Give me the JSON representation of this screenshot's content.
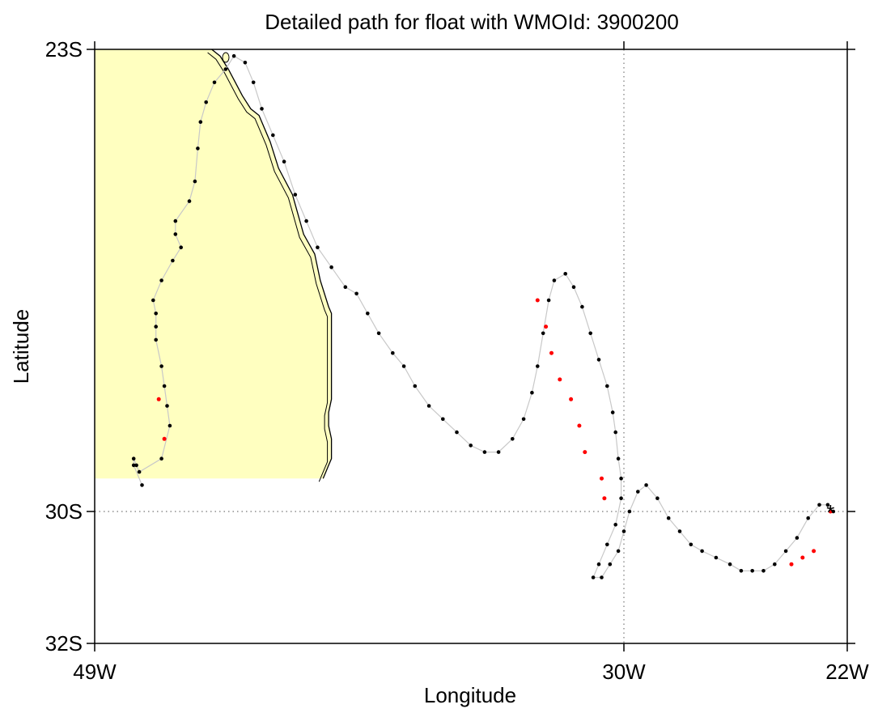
{
  "chart_data": {
    "type": "scatter",
    "title": "Detailed path for float with WMOId: 3900200",
    "xlabel": "Longitude",
    "ylabel": "Latitude",
    "x_ticks": [
      {
        "value": -49,
        "label": "49W"
      },
      {
        "value": -30,
        "label": "30W"
      },
      {
        "value": -22,
        "label": "22W"
      }
    ],
    "y_ticks": [
      {
        "value": -23,
        "label": "23S"
      },
      {
        "value": -30,
        "label": "30S"
      },
      {
        "value": -32,
        "label": "32S"
      }
    ],
    "xlim": [
      -49,
      -22
    ],
    "ylim": [
      -32,
      -23
    ],
    "grid": "dotted reference lines at 30W and 30S",
    "colors": {
      "land": "#ffffc0",
      "track": "#c8c8c8",
      "point": "#000000",
      "highlight": "#ff0000",
      "grid": "#777777"
    },
    "coastline": [
      [
        -44.8,
        -23.0
      ],
      [
        -44.5,
        -23.1
      ],
      [
        -44.2,
        -23.3
      ],
      [
        -43.7,
        -23.7
      ],
      [
        -43.4,
        -23.9
      ],
      [
        -43.1,
        -24.0
      ],
      [
        -42.7,
        -24.4
      ],
      [
        -42.4,
        -24.8
      ],
      [
        -41.9,
        -25.2
      ],
      [
        -41.5,
        -25.8
      ],
      [
        -41.1,
        -26.1
      ],
      [
        -40.9,
        -26.5
      ],
      [
        -40.6,
        -26.9
      ],
      [
        -40.5,
        -27.0
      ],
      [
        -40.5,
        -27.8
      ],
      [
        -40.5,
        -28.3
      ],
      [
        -40.6,
        -28.5
      ],
      [
        -40.6,
        -28.7
      ],
      [
        -40.5,
        -28.9
      ],
      [
        -40.5,
        -29.2
      ],
      [
        -40.6,
        -29.3
      ],
      [
        -40.7,
        -29.4
      ],
      [
        -40.8,
        -29.5
      ],
      [
        -49.0,
        -29.5
      ]
    ],
    "island_stamp": "islet near 44.6W 23.1S",
    "track": [
      [
        -47.3,
        -29.6
      ],
      [
        -47.6,
        -29.3
      ],
      [
        -47.6,
        -29.2
      ],
      [
        -47.5,
        -29.3
      ],
      [
        -47.4,
        -29.4
      ],
      [
        -46.6,
        -29.2
      ],
      [
        -46.3,
        -28.7
      ],
      [
        -46.4,
        -28.4
      ],
      [
        -46.5,
        -28.1
      ],
      [
        -46.6,
        -27.8
      ],
      [
        -46.8,
        -27.4
      ],
      [
        -46.8,
        -27.2
      ],
      [
        -46.8,
        -27.0
      ],
      [
        -46.9,
        -26.8
      ],
      [
        -46.6,
        -26.5
      ],
      [
        -46.2,
        -26.2
      ],
      [
        -45.9,
        -26.0
      ],
      [
        -46.1,
        -25.8
      ],
      [
        -46.1,
        -25.6
      ],
      [
        -45.6,
        -25.3
      ],
      [
        -45.4,
        -25.0
      ],
      [
        -45.3,
        -24.5
      ],
      [
        -45.2,
        -24.1
      ],
      [
        -45.0,
        -23.8
      ],
      [
        -44.7,
        -23.5
      ],
      [
        -44.3,
        -23.3
      ],
      [
        -44.0,
        -23.1
      ],
      [
        -43.6,
        -23.2
      ],
      [
        -43.3,
        -23.5
      ],
      [
        -43.0,
        -23.9
      ],
      [
        -42.6,
        -24.3
      ],
      [
        -42.2,
        -24.7
      ],
      [
        -41.8,
        -25.2
      ],
      [
        -41.4,
        -25.6
      ],
      [
        -41.0,
        -26.0
      ],
      [
        -40.5,
        -26.3
      ],
      [
        -40.0,
        -26.6
      ],
      [
        -39.6,
        -26.7
      ],
      [
        -39.2,
        -27.0
      ],
      [
        -38.8,
        -27.3
      ],
      [
        -38.3,
        -27.6
      ],
      [
        -37.9,
        -27.8
      ],
      [
        -37.5,
        -28.1
      ],
      [
        -37.0,
        -28.4
      ],
      [
        -36.5,
        -28.6
      ],
      [
        -36.0,
        -28.8
      ],
      [
        -35.5,
        -29.0
      ],
      [
        -35.0,
        -29.1
      ],
      [
        -34.5,
        -29.1
      ],
      [
        -34.0,
        -28.9
      ],
      [
        -33.6,
        -28.6
      ],
      [
        -33.3,
        -28.2
      ],
      [
        -33.1,
        -27.8
      ],
      [
        -32.9,
        -27.3
      ],
      [
        -32.7,
        -26.8
      ],
      [
        -32.5,
        -26.5
      ],
      [
        -32.1,
        -26.4
      ],
      [
        -31.8,
        -26.6
      ],
      [
        -31.5,
        -26.9
      ],
      [
        -31.2,
        -27.3
      ],
      [
        -30.9,
        -27.7
      ],
      [
        -30.6,
        -28.1
      ],
      [
        -30.4,
        -28.5
      ],
      [
        -30.3,
        -28.8
      ],
      [
        -30.2,
        -29.2
      ],
      [
        -30.1,
        -29.5
      ],
      [
        -30.1,
        -29.8
      ],
      [
        -30.3,
        -30.2
      ],
      [
        -30.6,
        -30.5
      ],
      [
        -30.9,
        -30.8
      ],
      [
        -31.1,
        -31.0
      ],
      [
        -30.8,
        -31.0
      ],
      [
        -30.5,
        -30.8
      ],
      [
        -30.2,
        -30.6
      ],
      [
        -30.0,
        -30.3
      ],
      [
        -29.8,
        -30.0
      ],
      [
        -29.5,
        -29.7
      ],
      [
        -29.2,
        -29.6
      ],
      [
        -28.8,
        -29.8
      ],
      [
        -28.4,
        -30.1
      ],
      [
        -28.0,
        -30.3
      ],
      [
        -27.6,
        -30.5
      ],
      [
        -27.2,
        -30.6
      ],
      [
        -26.7,
        -30.7
      ],
      [
        -26.2,
        -30.8
      ],
      [
        -25.8,
        -30.9
      ],
      [
        -25.4,
        -30.9
      ],
      [
        -25.0,
        -30.9
      ],
      [
        -24.6,
        -30.8
      ],
      [
        -24.2,
        -30.6
      ],
      [
        -23.8,
        -30.4
      ],
      [
        -23.4,
        -30.1
      ],
      [
        -23.0,
        -29.9
      ],
      [
        -22.7,
        -29.9
      ],
      [
        -22.5,
        -30.0
      ]
    ],
    "highlight_points": [
      [
        -46.7,
        -28.3
      ],
      [
        -46.5,
        -28.9
      ],
      [
        -33.1,
        -26.8
      ],
      [
        -32.8,
        -27.2
      ],
      [
        -32.6,
        -27.6
      ],
      [
        -32.3,
        -28.0
      ],
      [
        -31.9,
        -28.3
      ],
      [
        -31.6,
        -28.7
      ],
      [
        -31.4,
        -29.1
      ],
      [
        -30.8,
        -29.5
      ],
      [
        -30.7,
        -29.8
      ],
      [
        -24.0,
        -30.8
      ],
      [
        -23.6,
        -30.7
      ],
      [
        -23.2,
        -30.6
      ],
      [
        -22.6,
        -30.0
      ]
    ],
    "last_position_marker": {
      "symbol": "*",
      "value": [
        -22.6,
        -30.0
      ]
    }
  }
}
